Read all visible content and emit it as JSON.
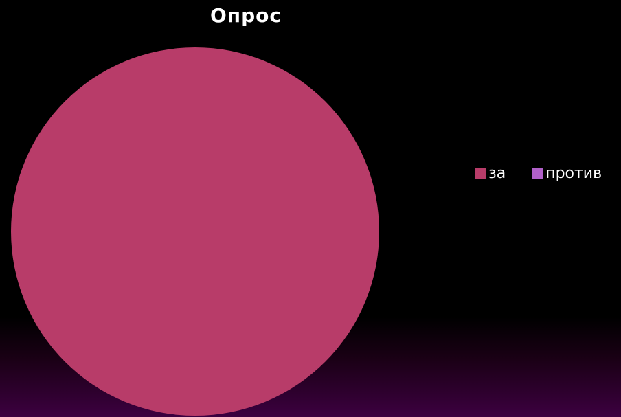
{
  "chart_data": {
    "type": "pie",
    "title": "Опрос",
    "categories": [
      "за",
      "против"
    ],
    "values": [
      100,
      0
    ],
    "colors": [
      "#b83c69",
      "#b060c8"
    ],
    "legend": "right"
  }
}
